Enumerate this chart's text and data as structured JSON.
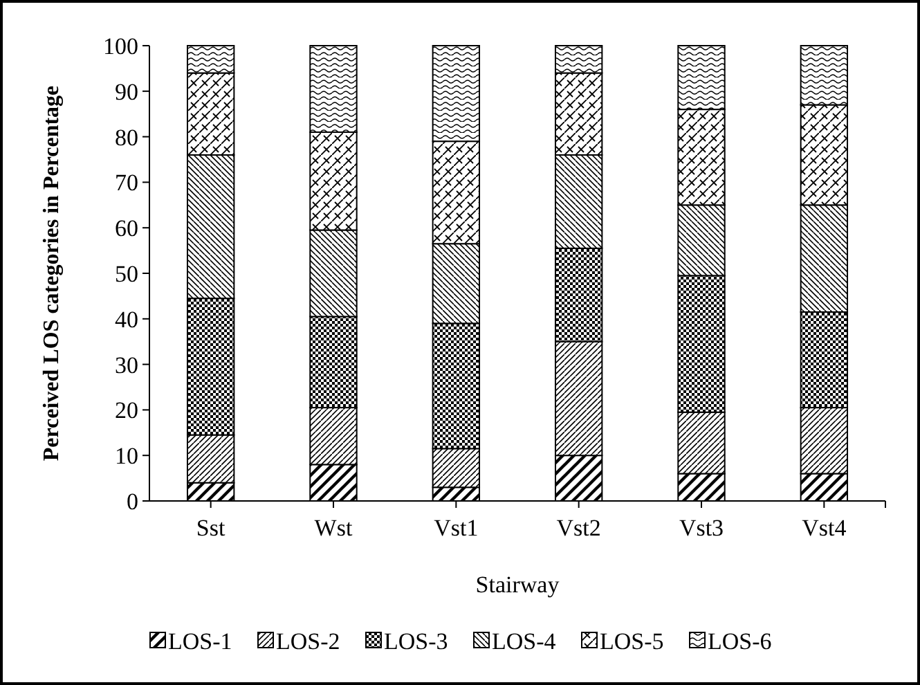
{
  "chart_data": {
    "type": "bar",
    "stacked": true,
    "xlabel": "Stairway",
    "ylabel": "Perceived LOS categories in Percentage",
    "categories": [
      "Sst",
      "Wst",
      "Vst1",
      "Vst2",
      "Vst3",
      "Vst4"
    ],
    "series": [
      {
        "name": "LOS-1",
        "color": "#000000",
        "values": [
          4,
          8,
          3,
          10,
          6,
          6
        ]
      },
      {
        "name": "LOS-2",
        "color": "#000000",
        "values": [
          10.5,
          12.5,
          8.5,
          25,
          13.5,
          14.5
        ]
      },
      {
        "name": "LOS-3",
        "color": "#000000",
        "values": [
          30,
          20,
          27.5,
          20.5,
          30,
          21
        ]
      },
      {
        "name": "LOS-4",
        "color": "#000000",
        "values": [
          31.5,
          19,
          17.5,
          20.5,
          15.5,
          23.5
        ]
      },
      {
        "name": "LOS-5",
        "color": "#000000",
        "values": [
          18,
          21.5,
          22.5,
          18,
          21,
          22
        ]
      },
      {
        "name": "LOS-6",
        "color": "#000000",
        "values": [
          6,
          19,
          21,
          6,
          14,
          13
        ]
      }
    ],
    "ylim": [
      0,
      100
    ],
    "yticks": [
      0,
      10,
      20,
      30,
      40,
      50,
      60,
      70,
      80,
      90,
      100
    ],
    "legend": "bottom"
  }
}
